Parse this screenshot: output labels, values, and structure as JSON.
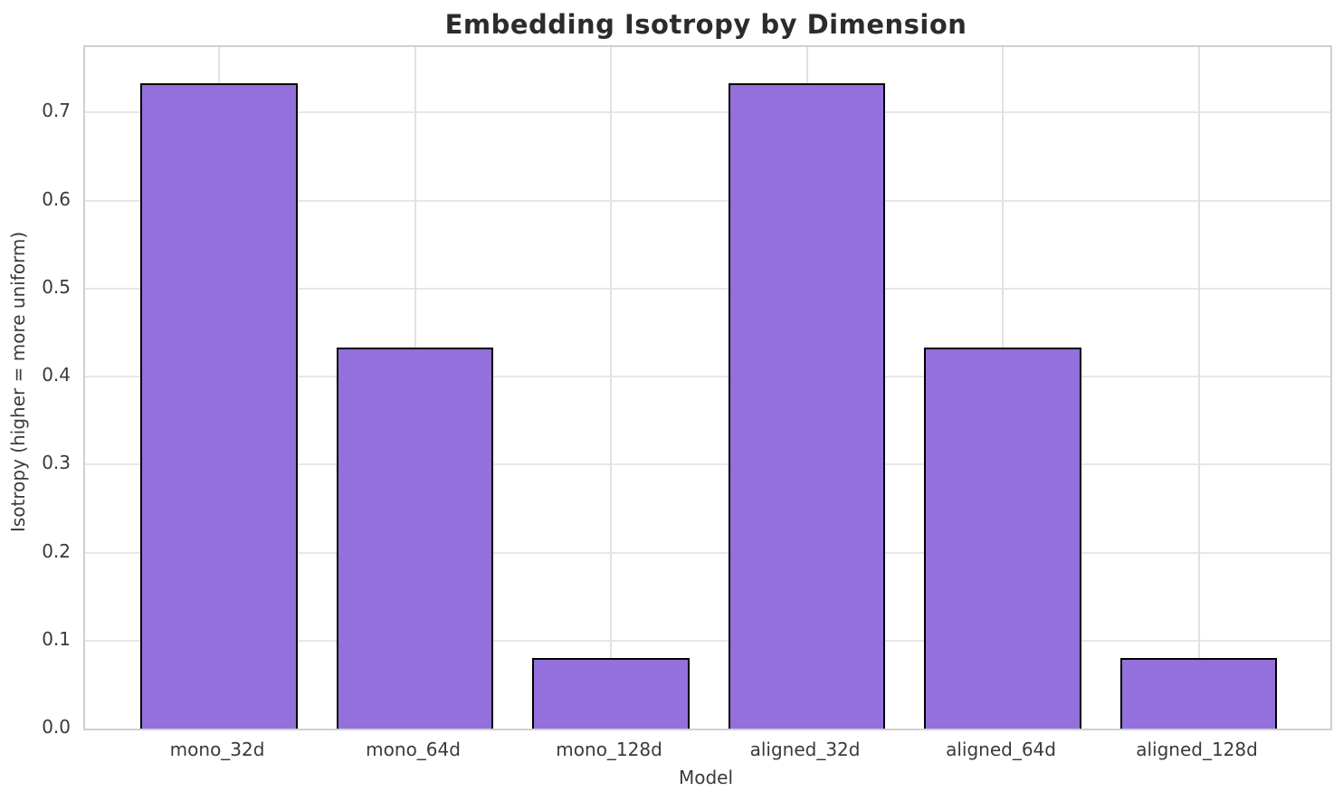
{
  "chart_data": {
    "type": "bar",
    "title": "Embedding Isotropy by Dimension",
    "xlabel": "Model",
    "ylabel": "Isotropy (higher = more uniform)",
    "categories": [
      "mono_32d",
      "mono_64d",
      "mono_128d",
      "aligned_32d",
      "aligned_64d",
      "aligned_128d"
    ],
    "values": [
      0.733,
      0.433,
      0.08,
      0.733,
      0.433,
      0.08
    ],
    "ylim": [
      0,
      0.7745
    ],
    "yticks": [
      0.0,
      0.1,
      0.2,
      0.3,
      0.4,
      0.5,
      0.6,
      0.7
    ],
    "ytick_labels": [
      "0.0",
      "0.1",
      "0.2",
      "0.3",
      "0.4",
      "0.5",
      "0.6",
      "0.7"
    ],
    "grid": true,
    "legend_position": "none",
    "bar_width_fraction": 0.8,
    "colors": {
      "bar_fill": "#9370DB",
      "bar_edge": "#000000",
      "grid_line": "#e7e7e7",
      "spine": "#d0d0d0",
      "title_text": "#2b2b2b",
      "tick_text": "#3a3a3a",
      "background": "#ffffff"
    }
  }
}
